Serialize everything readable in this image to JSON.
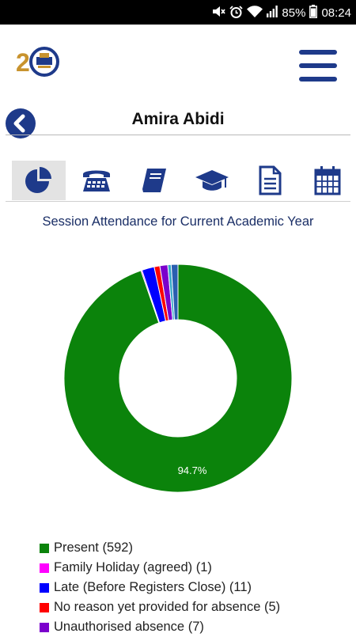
{
  "status_bar": {
    "battery": "85%",
    "time": "08:24",
    "icons": [
      "mute-icon",
      "alarm-icon",
      "wifi-icon",
      "signal-icon",
      "battery-icon"
    ]
  },
  "header": {
    "logo_icon": "school-logo-icon",
    "menu_icon": "hamburger-menu-icon",
    "back_icon": "back-arrow-icon",
    "student_name": "Amira Abidi"
  },
  "tabs": [
    {
      "icon": "pie-chart-icon",
      "active": true
    },
    {
      "icon": "telephone-icon",
      "active": false
    },
    {
      "icon": "book-icon",
      "active": false
    },
    {
      "icon": "graduation-cap-icon",
      "active": false
    },
    {
      "icon": "document-icon",
      "active": false
    },
    {
      "icon": "calendar-icon",
      "active": false
    }
  ],
  "colors": {
    "brand": "#1e3a8a",
    "present": "#0b830b",
    "family_holiday": "#ff00ff",
    "late": "#0000ff",
    "no_reason": "#ff0000",
    "unauthorised": "#7b00cc",
    "other": "#35a8c8"
  },
  "chart_data": {
    "type": "pie",
    "title": "Session Attendance for Current Academic Year",
    "donut": true,
    "slice_label": "94.7%",
    "slices": [
      {
        "label": "Present (592)",
        "value": 592,
        "color": "#0b830b"
      },
      {
        "label": "Family Holiday (agreed) (1)",
        "value": 1,
        "color": "#ff00ff"
      },
      {
        "label": "Late (Before Registers Close) (11)",
        "value": 11,
        "color": "#0000ff"
      },
      {
        "label": "No reason yet provided for absence (5)",
        "value": 5,
        "color": "#ff0000"
      },
      {
        "label": "Unauthorised absence (7)",
        "value": 7,
        "color": "#7b00cc"
      },
      {
        "value": 3,
        "color": "#35a8c8"
      },
      {
        "value": 6,
        "color": "#2a5fb0"
      }
    ],
    "legend_position": "bottom-left"
  }
}
